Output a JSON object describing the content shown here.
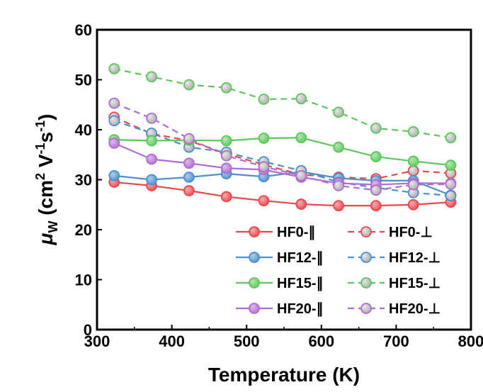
{
  "chart_data": {
    "type": "line",
    "title": "",
    "xlabel": "Temperature (K)",
    "ylabel_parts": {
      "mu": "μ",
      "sub": "W",
      "paren_open": "(cm",
      "sup2": "2",
      "v": " V",
      "sup_m1": "-1",
      "s": "s",
      "sup_m1b": "-1",
      "paren_close": ")"
    },
    "xlim": [
      300,
      800
    ],
    "ylim": [
      0,
      60
    ],
    "xticks": [
      300,
      400,
      500,
      600,
      700,
      800
    ],
    "yticks": [
      0,
      10,
      20,
      30,
      40,
      50,
      60
    ],
    "grid": false,
    "legend_position": "bottom-right",
    "x": [
      323,
      373,
      423,
      473,
      523,
      573,
      623,
      673,
      723,
      773
    ],
    "series": [
      {
        "name": "HF0-∥",
        "color": "#e8474b",
        "style": "solid",
        "values": [
          29.5,
          28.8,
          27.8,
          26.6,
          25.8,
          25.1,
          24.8,
          24.8,
          25.0,
          25.5
        ]
      },
      {
        "name": "HF0-⊥",
        "color": "#e8474b",
        "style": "dashed",
        "values": [
          42.5,
          39.2,
          37.8,
          35.2,
          33.0,
          31.0,
          30.5,
          30.2,
          31.8,
          31.3
        ]
      },
      {
        "name": "HF12-∥",
        "color": "#4a90d0",
        "style": "solid",
        "values": [
          30.8,
          30.0,
          30.5,
          31.2,
          30.6,
          31.6,
          30.3,
          29.8,
          29.8,
          26.9
        ]
      },
      {
        "name": "HF12-⊥",
        "color": "#4a90d0",
        "style": "dashed",
        "values": [
          41.8,
          39.3,
          36.5,
          35.5,
          33.6,
          31.8,
          29.5,
          28.4,
          27.4,
          26.8
        ]
      },
      {
        "name": "HF15-∥",
        "color": "#5cc85a",
        "style": "solid",
        "values": [
          38.0,
          37.8,
          37.9,
          37.8,
          38.3,
          38.4,
          36.5,
          34.6,
          33.7,
          32.9
        ]
      },
      {
        "name": "HF15-⊥",
        "color": "#5cc85a",
        "style": "dashed",
        "values": [
          52.2,
          50.6,
          49.0,
          48.4,
          46.1,
          46.2,
          43.5,
          40.3,
          39.6,
          38.4
        ]
      },
      {
        "name": "HF20-∥",
        "color": "#b26bd0",
        "style": "solid",
        "values": [
          37.3,
          34.1,
          33.3,
          32.3,
          32.0,
          30.5,
          29.3,
          29.0,
          29.3,
          29.3
        ]
      },
      {
        "name": "HF20-⊥",
        "color": "#b26bd0",
        "style": "dashed",
        "values": [
          45.3,
          42.3,
          38.2,
          34.8,
          32.6,
          30.8,
          28.8,
          27.9,
          29.0,
          29.1
        ]
      }
    ]
  }
}
